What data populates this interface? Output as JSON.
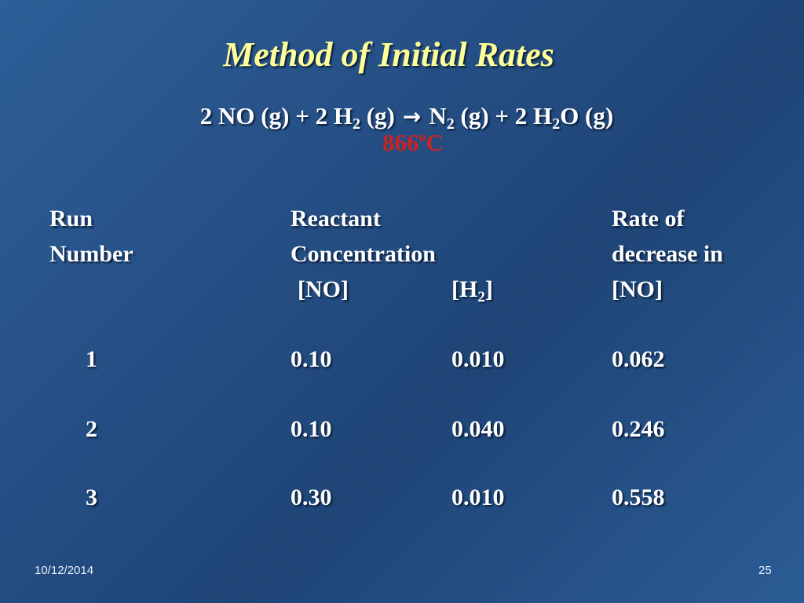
{
  "title": "Method of Initial Rates",
  "equation": {
    "part1": "2 NO (g)  +  2 H",
    "sub1": "2",
    "part2": " (g)",
    "arrow": "→",
    "part3": "N",
    "sub2": "2",
    "part4": " (g)  +  2 H",
    "sub3": "2",
    "part5": "O (g)"
  },
  "temperature": {
    "value": "866",
    "degree": "o",
    "unit": "C"
  },
  "table": {
    "headers": {
      "run_line1": "Run",
      "run_line2": "Number",
      "reactant_line1": "Reactant",
      "reactant_line2": "Concentration",
      "no_col": "[NO]",
      "h2_col_prefix": "[H",
      "h2_col_sub": "2",
      "h2_col_suffix": "]",
      "rate_line1": "Rate of",
      "rate_line2": "decrease in",
      "rate_line3": "[NO]"
    },
    "rows": [
      {
        "run": "1",
        "no": "0.10",
        "h2": "0.010",
        "rate": "0.062"
      },
      {
        "run": "2",
        "no": "0.10",
        "h2": "0.040",
        "rate": "0.246"
      },
      {
        "run": "3",
        "no": "0.30",
        "h2": "0.010",
        "rate": "0.558"
      }
    ]
  },
  "footer": {
    "date": "10/12/2014",
    "page": "25"
  },
  "colors": {
    "background": "#244d82",
    "title": "#ffff99",
    "text": "#ffffff",
    "temperature": "#cc2222"
  }
}
